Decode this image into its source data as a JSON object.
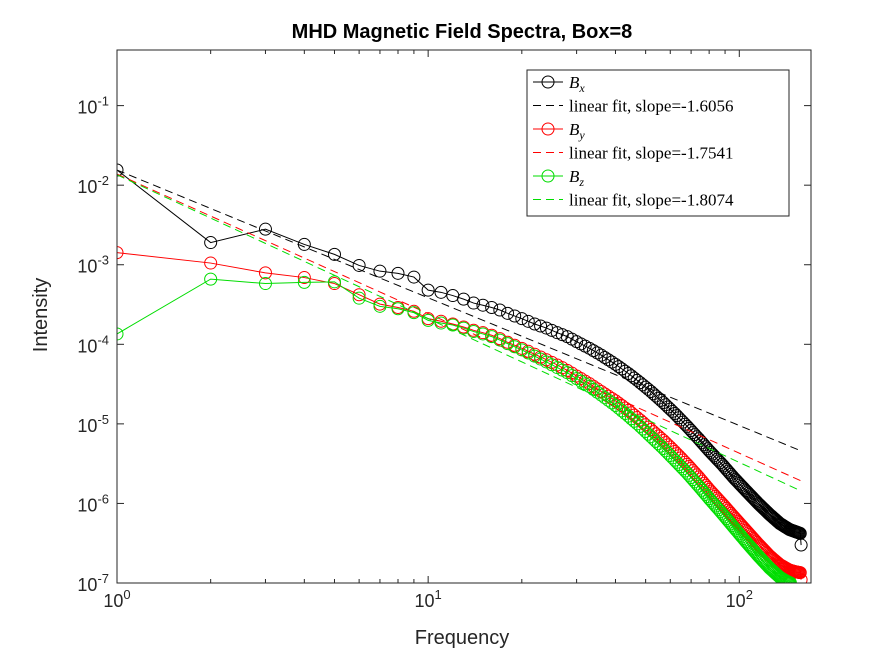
{
  "chart_data": {
    "type": "line",
    "title": "MHD Magnetic Field Spectra, Box=8",
    "xlabel": "Frequency",
    "ylabel": "Intensity",
    "xscale": "log",
    "yscale": "log",
    "xlim": [
      1,
      170
    ],
    "ylim": [
      1e-07,
      0.5
    ],
    "xticks": [
      {
        "value": 1,
        "base": "10",
        "exp": "0"
      },
      {
        "value": 10,
        "base": "10",
        "exp": "1"
      },
      {
        "value": 100,
        "base": "10",
        "exp": "2"
      }
    ],
    "yticks": [
      {
        "value": 1e-07,
        "base": "10",
        "exp": "-7"
      },
      {
        "value": 1e-06,
        "base": "10",
        "exp": "-6"
      },
      {
        "value": 1e-05,
        "base": "10",
        "exp": "-5"
      },
      {
        "value": 0.0001,
        "base": "10",
        "exp": "-4"
      },
      {
        "value": 0.001,
        "base": "10",
        "exp": "-3"
      },
      {
        "value": 0.01,
        "base": "10",
        "exp": "-2"
      },
      {
        "value": 0.1,
        "base": "10",
        "exp": "-1"
      }
    ],
    "grid": false,
    "legend_position": "top-right",
    "series": [
      {
        "name": "B",
        "subscript": "x",
        "color": "#000000",
        "points": [
          [
            1,
            0.0155
          ],
          [
            2,
            0.0019
          ],
          [
            3,
            0.0028
          ],
          [
            4,
            0.0018
          ],
          [
            5,
            0.00135
          ],
          [
            6,
            0.00098
          ],
          [
            7,
            0.00083
          ],
          [
            8,
            0.00078
          ],
          [
            9,
            0.0007
          ],
          [
            10,
            0.00048
          ],
          [
            11,
            0.00045
          ],
          [
            12,
            0.00041
          ],
          [
            13,
            0.00037
          ],
          [
            14,
            0.00033
          ],
          [
            15,
            0.00031
          ],
          [
            16,
            0.00029
          ],
          [
            17,
            0.00027
          ],
          [
            18,
            0.000245
          ],
          [
            20,
            0.00021
          ],
          [
            22,
            0.00018
          ],
          [
            24,
            0.00016
          ],
          [
            26,
            0.00014
          ],
          [
            28,
            0.000125
          ],
          [
            30,
            0.000108
          ],
          [
            33,
            8.9e-05
          ],
          [
            36,
            7.3e-05
          ],
          [
            40,
            5.6e-05
          ],
          [
            44,
            4.3e-05
          ],
          [
            48,
            3.3e-05
          ],
          [
            52,
            2.55e-05
          ],
          [
            57,
            1.85e-05
          ],
          [
            62,
            1.35e-05
          ],
          [
            68,
            9.3e-06
          ],
          [
            74,
            6.5e-06
          ],
          [
            80,
            4.6e-06
          ],
          [
            88,
            3.1e-06
          ],
          [
            96,
            2.1e-06
          ],
          [
            105,
            1.45e-06
          ],
          [
            115,
            1e-06
          ],
          [
            125,
            7.3e-07
          ],
          [
            135,
            5.6e-07
          ],
          [
            145,
            4.7e-07
          ],
          [
            152,
            4.4e-07
          ],
          [
            157,
            4.2e-07
          ],
          [
            158,
            3e-07
          ]
        ],
        "markers_every": 1
      },
      {
        "name": "linear fit, slope=-1.6056",
        "color": "#000000",
        "dashed": true,
        "slope": -1.6056,
        "x_range": [
          1,
          158
        ],
        "intercept": 0.0155
      },
      {
        "name": "B",
        "subscript": "y",
        "color": "#ff0000",
        "points": [
          [
            1,
            0.00142
          ],
          [
            2,
            0.00105
          ],
          [
            3,
            0.00079
          ],
          [
            4,
            0.00069
          ],
          [
            5,
            0.00058
          ],
          [
            6,
            0.00042
          ],
          [
            7,
            0.00032
          ],
          [
            8,
            0.00029
          ],
          [
            9,
            0.00026
          ],
          [
            10,
            0.00021
          ],
          [
            11,
            0.000195
          ],
          [
            12,
            0.00018
          ],
          [
            13,
            0.000165
          ],
          [
            14,
            0.00015
          ],
          [
            15,
            0.00014
          ],
          [
            16,
            0.00013
          ],
          [
            17,
            0.000118
          ],
          [
            18,
            0.000106
          ],
          [
            20,
            8.9e-05
          ],
          [
            22,
            7.5e-05
          ],
          [
            24,
            6.4e-05
          ],
          [
            26,
            5.5e-05
          ],
          [
            28,
            4.7e-05
          ],
          [
            30,
            4e-05
          ],
          [
            33,
            3.2e-05
          ],
          [
            36,
            2.55e-05
          ],
          [
            40,
            1.95e-05
          ],
          [
            44,
            1.48e-05
          ],
          [
            48,
            1.12e-05
          ],
          [
            52,
            8.5e-06
          ],
          [
            57,
            6.2e-06
          ],
          [
            62,
            4.5e-06
          ],
          [
            68,
            3.1e-06
          ],
          [
            74,
            2.15e-06
          ],
          [
            80,
            1.5e-06
          ],
          [
            88,
            1e-06
          ],
          [
            96,
            6.8e-07
          ],
          [
            105,
            4.6e-07
          ],
          [
            115,
            3.1e-07
          ],
          [
            125,
            2.2e-07
          ],
          [
            135,
            1.7e-07
          ],
          [
            145,
            1.45e-07
          ],
          [
            152,
            1.38e-07
          ],
          [
            157,
            1.35e-07
          ],
          [
            158,
            1.1e-07
          ]
        ]
      },
      {
        "name": "linear fit, slope=-1.7541",
        "color": "#ff0000",
        "dashed": true,
        "slope": -1.7541,
        "x_range": [
          1,
          158
        ],
        "intercept": 0.0138
      },
      {
        "name": "B",
        "subscript": "z",
        "color": "#00dd00",
        "points": [
          [
            1,
            0.000135
          ],
          [
            2,
            0.00066
          ],
          [
            3,
            0.00058
          ],
          [
            4,
            0.0006
          ],
          [
            5,
            0.00061
          ],
          [
            6,
            0.00038
          ],
          [
            7,
            0.0003
          ],
          [
            8,
            0.00028
          ],
          [
            9,
            0.00025
          ],
          [
            10,
            0.0002
          ],
          [
            11,
            0.000185
          ],
          [
            12,
            0.000175
          ],
          [
            13,
            0.00016
          ],
          [
            14,
            0.000145
          ],
          [
            15,
            0.000135
          ],
          [
            16,
            0.000125
          ],
          [
            17,
            0.000113
          ],
          [
            18,
            0.000102
          ],
          [
            20,
            8.5e-05
          ],
          [
            22,
            7.1e-05
          ],
          [
            24,
            6e-05
          ],
          [
            26,
            5.1e-05
          ],
          [
            28,
            4.4e-05
          ],
          [
            30,
            3.7e-05
          ],
          [
            33,
            2.95e-05
          ],
          [
            36,
            2.3e-05
          ],
          [
            40,
            1.7e-05
          ],
          [
            44,
            1.25e-05
          ],
          [
            48,
            9.3e-06
          ],
          [
            52,
            6.9e-06
          ],
          [
            57,
            4.9e-06
          ],
          [
            62,
            3.5e-06
          ],
          [
            68,
            2.4e-06
          ],
          [
            74,
            1.65e-06
          ],
          [
            80,
            1.15e-06
          ],
          [
            88,
            7.5e-07
          ],
          [
            96,
            5e-07
          ],
          [
            105,
            3.3e-07
          ],
          [
            115,
            2.2e-07
          ],
          [
            125,
            1.55e-07
          ],
          [
            135,
            1.18e-07
          ],
          [
            142,
            1.05e-07
          ],
          [
            146,
            1e-07
          ]
        ]
      },
      {
        "name": "linear fit, slope=-1.8074",
        "color": "#00dd00",
        "dashed": true,
        "slope": -1.8074,
        "x_range": [
          1,
          158
        ],
        "intercept": 0.0135
      }
    ]
  }
}
